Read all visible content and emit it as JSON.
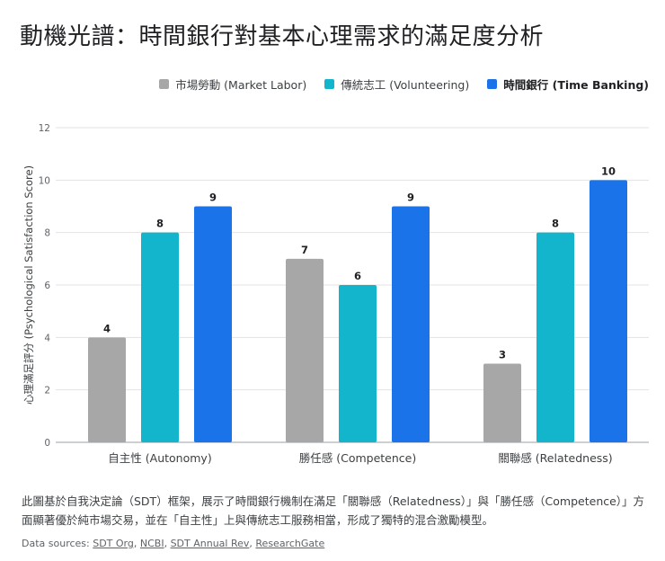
{
  "title": "動機光譜：時間銀行對基本心理需求的滿足度分析",
  "legend": [
    {
      "label": "市場勞動 (Market Labor)",
      "color": "#a7a7a7",
      "bold": false
    },
    {
      "label": "傳統志工 (Volunteering)",
      "color": "#12b5cb",
      "bold": false
    },
    {
      "label": "時間銀行 (Time Banking)",
      "color": "#1a73e8",
      "bold": true
    }
  ],
  "chart_data": {
    "type": "bar",
    "title": "動機光譜：時間銀行對基本心理需求的滿足度分析",
    "xlabel": "",
    "ylabel": "心理滿足評分 (Psychological Satisfaction Score)",
    "ylim": [
      0,
      12
    ],
    "yticks": [
      "0",
      "2",
      "4",
      "6",
      "8",
      "10",
      "12"
    ],
    "grid": true,
    "legend_position": "top-right",
    "categories": [
      "自主性 (Autonomy)",
      "勝任感 (Competence)",
      "關聯感 (Relatedness)"
    ],
    "series": [
      {
        "name": "市場勞動 (Market Labor)",
        "color": "#a7a7a7",
        "values": [
          4,
          7,
          3
        ]
      },
      {
        "name": "傳統志工 (Volunteering)",
        "color": "#12b5cb",
        "values": [
          8,
          6,
          8
        ]
      },
      {
        "name": "時間銀行 (Time Banking)",
        "color": "#1a73e8",
        "values": [
          9,
          9,
          10
        ]
      }
    ]
  },
  "caption": "此圖基於自我決定論（SDT）框架，展示了時間銀行機制在滿足「關聯感（Relatedness）」與「勝任感（Competence）」方面顯著優於純市場交易，並在「自主性」上與傳統志工服務相當，形成了獨特的混合激勵模型。",
  "sources": {
    "prefix": "Data sources: ",
    "links": [
      "SDT Org",
      "NCBI",
      "SDT Annual Rev",
      "ResearchGate"
    ],
    "separator": ", "
  }
}
